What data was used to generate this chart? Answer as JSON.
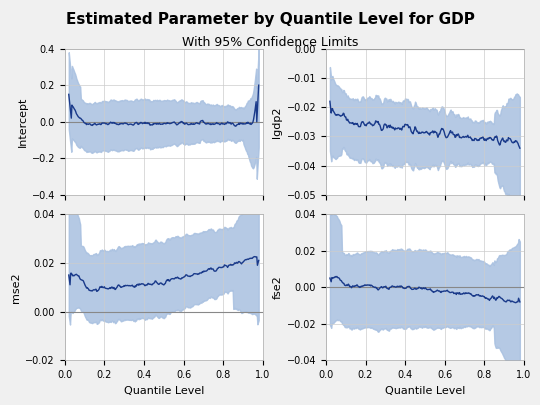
{
  "title": "Estimated Parameter by Quantile Level for GDP",
  "subtitle": "With 95% Confidence Limits",
  "xlabel": "Quantile Level",
  "panels": [
    {
      "ylabel": "Intercept",
      "ylim": [
        -0.4,
        0.4
      ],
      "yticks": [
        -0.4,
        -0.2,
        0.0,
        0.2,
        0.4
      ]
    },
    {
      "ylabel": "lgdp2",
      "ylim": [
        -0.05,
        0.0
      ],
      "yticks": [
        -0.05,
        -0.04,
        -0.03,
        -0.02,
        -0.01,
        0.0
      ]
    },
    {
      "ylabel": "mse2",
      "ylim": [
        -0.02,
        0.04
      ],
      "yticks": [
        -0.02,
        0.0,
        0.02,
        0.04
      ]
    },
    {
      "ylabel": "fse2",
      "ylim": [
        -0.04,
        0.04
      ],
      "yticks": [
        -0.04,
        -0.02,
        0.0,
        0.02,
        0.04
      ]
    }
  ],
  "line_color": "#1a3a8a",
  "band_color": "#a8c0e0",
  "zero_line_color": "#888888",
  "background_color": "#f0f0f0",
  "plot_background": "#ffffff",
  "grid_color": "#cccccc",
  "n_points": 300,
  "seed": 42
}
